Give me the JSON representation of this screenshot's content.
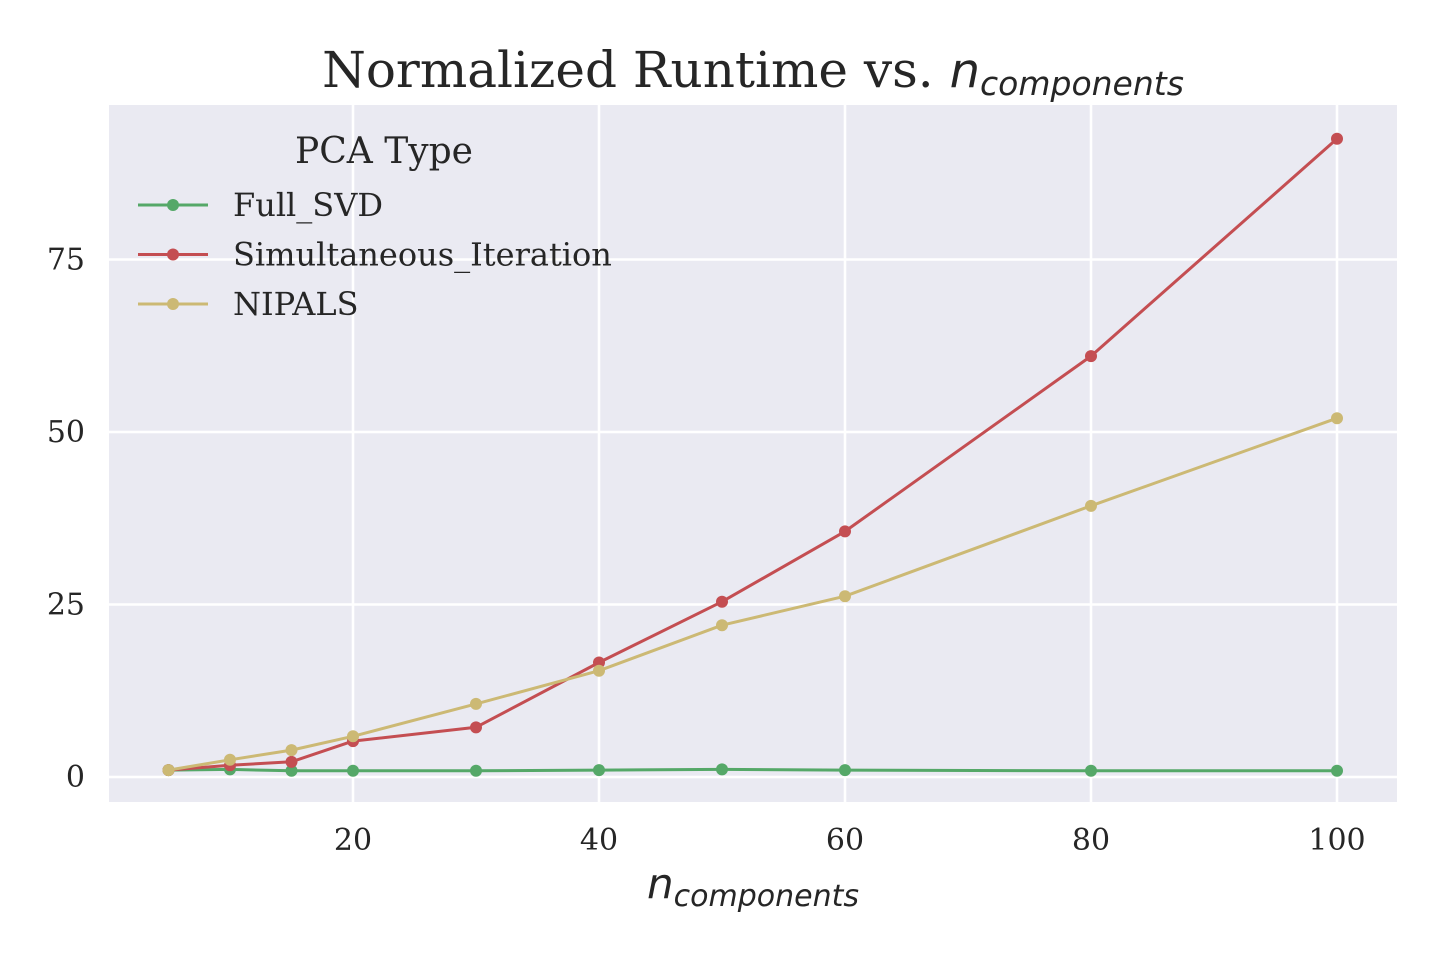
{
  "chart_data": {
    "type": "line",
    "title": {
      "prefix": "Normalized Runtime vs. ",
      "math_base": "n",
      "math_sub": "components"
    },
    "xlabel": {
      "math_base": "n",
      "math_sub": "components"
    },
    "ylabel": "",
    "xlim": [
      0.3,
      105
    ],
    "ylim": [
      -7,
      195
    ],
    "x_ticks": [
      20,
      40,
      60,
      80,
      100
    ],
    "y_ticks": [
      0,
      25,
      50,
      75
    ],
    "grid": true,
    "legend": {
      "title": "PCA Type",
      "placement": "top-left"
    },
    "series": [
      {
        "name": "Full_SVD",
        "color": "#55a868",
        "x": [
          5,
          10,
          15,
          20,
          30,
          40,
          50,
          60,
          80,
          100
        ],
        "y": [
          1.0,
          1.1,
          0.9,
          0.9,
          0.9,
          1.0,
          1.1,
          1.0,
          0.9,
          0.9
        ]
      },
      {
        "name": "Simultaneous_Iteration",
        "color": "#c44e52",
        "x": [
          5,
          10,
          15,
          20,
          30,
          40,
          50,
          60,
          80,
          100
        ],
        "y": [
          1.0,
          1.7,
          2.2,
          5.2,
          7.2,
          16.6,
          25.4,
          35.6,
          61.0,
          92.5
        ]
      },
      {
        "name": "NIPALS",
        "color": "#ccb974",
        "x": [
          5,
          10,
          15,
          20,
          30,
          40,
          50,
          60,
          80,
          100
        ],
        "y": [
          1.0,
          2.5,
          3.9,
          5.9,
          10.6,
          15.4,
          22.0,
          26.2,
          39.3,
          52.0
        ]
      }
    ]
  }
}
